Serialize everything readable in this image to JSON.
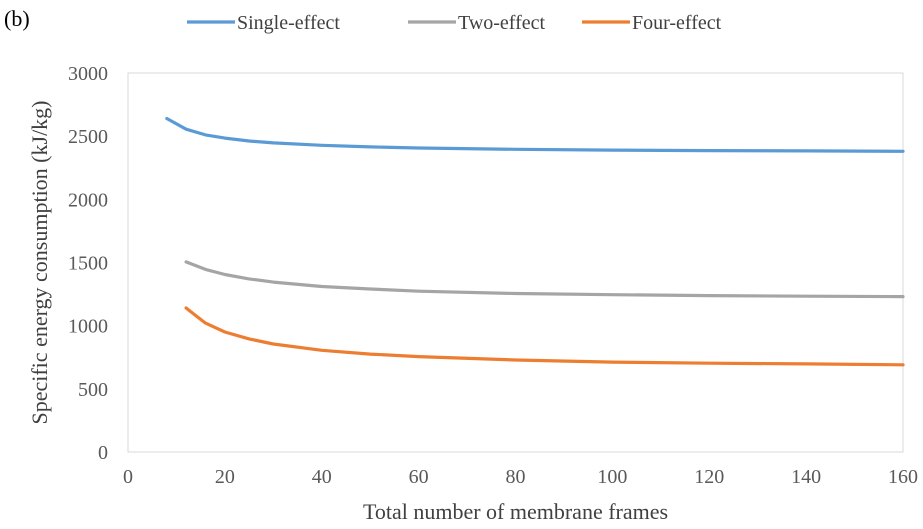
{
  "panel_label": "(b)",
  "chart_data": {
    "type": "line",
    "xlabel": "Total number of membrane frames",
    "ylabel": "Specific energy consumption (kJ/kg)",
    "xlim": [
      0,
      160
    ],
    "ylim": [
      0,
      3000
    ],
    "xticks": [
      0,
      20,
      40,
      60,
      80,
      100,
      120,
      140,
      160
    ],
    "yticks": [
      0,
      500,
      1000,
      1500,
      2000,
      2500,
      3000
    ],
    "grid": false,
    "legend": "top",
    "series": [
      {
        "name": "Single-effect",
        "color": "#5B9BD5",
        "x": [
          8,
          12,
          16,
          20,
          25,
          30,
          40,
          50,
          60,
          80,
          100,
          120,
          140,
          160
        ],
        "y": [
          2640,
          2555,
          2510,
          2485,
          2462,
          2447,
          2428,
          2415,
          2406,
          2396,
          2390,
          2386,
          2383,
          2380
        ]
      },
      {
        "name": "Two-effect",
        "color": "#A5A5A5",
        "x": [
          12,
          16,
          20,
          25,
          30,
          40,
          50,
          60,
          80,
          100,
          120,
          140,
          160
        ],
        "y": [
          1505,
          1445,
          1405,
          1370,
          1345,
          1310,
          1290,
          1273,
          1255,
          1245,
          1238,
          1233,
          1230
        ]
      },
      {
        "name": "Four-effect",
        "color": "#ED7D31",
        "x": [
          12,
          14,
          16,
          18,
          20,
          25,
          30,
          40,
          50,
          60,
          80,
          100,
          120,
          140,
          160
        ],
        "y": [
          1140,
          1080,
          1020,
          985,
          950,
          895,
          855,
          805,
          775,
          755,
          728,
          712,
          703,
          697,
          690
        ]
      }
    ]
  }
}
